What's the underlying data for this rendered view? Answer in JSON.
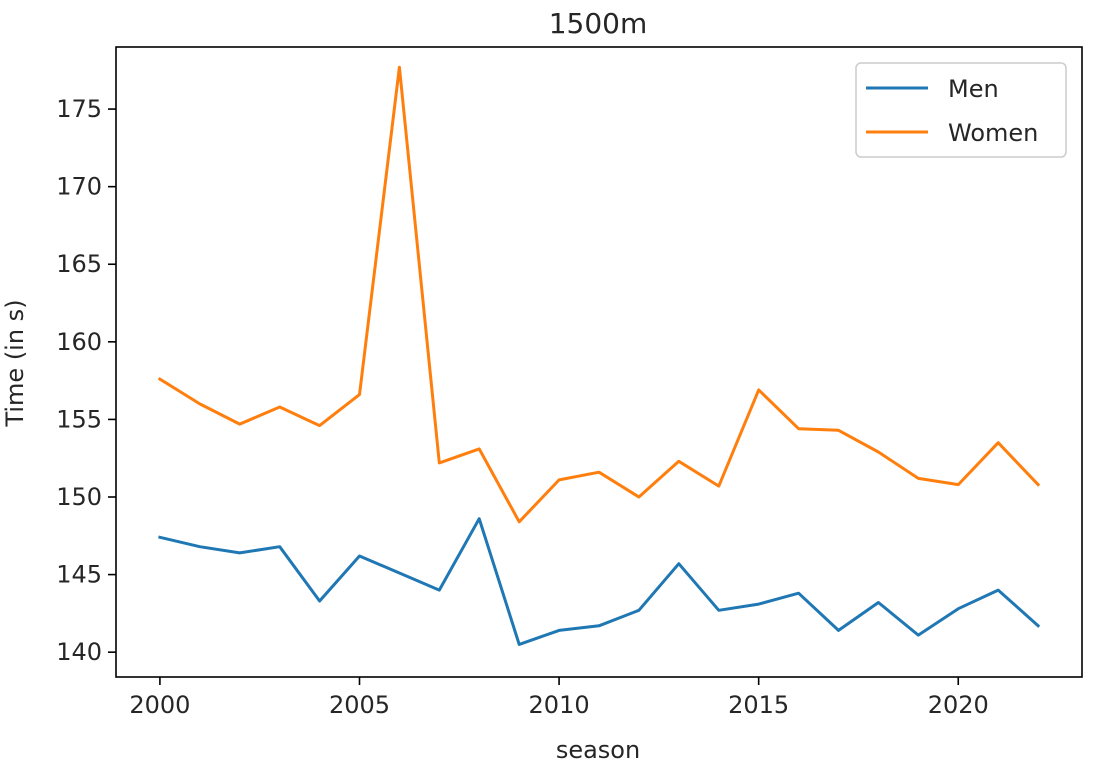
{
  "chart_data": {
    "type": "line",
    "title": "1500m",
    "xlabel": "season",
    "ylabel": "Time (in s)",
    "xlim": [
      1998.9,
      2023.1
    ],
    "ylim": [
      138.4,
      179.0
    ],
    "x_ticks": [
      2000,
      2005,
      2010,
      2015,
      2020
    ],
    "y_ticks": [
      140,
      145,
      150,
      155,
      160,
      165,
      170,
      175
    ],
    "legend_position": "top-right",
    "grid": false,
    "x": [
      2000,
      2001,
      2002,
      2003,
      2004,
      2005,
      2006,
      2007,
      2008,
      2009,
      2010,
      2011,
      2012,
      2013,
      2014,
      2015,
      2016,
      2017,
      2018,
      2019,
      2020,
      2021,
      2022
    ],
    "series": [
      {
        "name": "Men",
        "color": "#1f77b4",
        "values": [
          147.4,
          146.8,
          146.4,
          146.8,
          143.3,
          146.2,
          145.1,
          144.0,
          148.6,
          140.5,
          141.4,
          141.7,
          142.7,
          145.7,
          142.7,
          143.1,
          143.8,
          141.4,
          143.2,
          141.1,
          142.8,
          144.0,
          141.7
        ]
      },
      {
        "name": "Women",
        "color": "#ff7f0e",
        "values": [
          157.6,
          156.0,
          154.7,
          155.8,
          154.6,
          156.6,
          177.7,
          152.2,
          153.1,
          148.4,
          151.1,
          151.6,
          150.0,
          152.3,
          150.7,
          156.9,
          154.4,
          154.3,
          152.9,
          151.2,
          150.8,
          153.5,
          150.8
        ]
      }
    ]
  }
}
